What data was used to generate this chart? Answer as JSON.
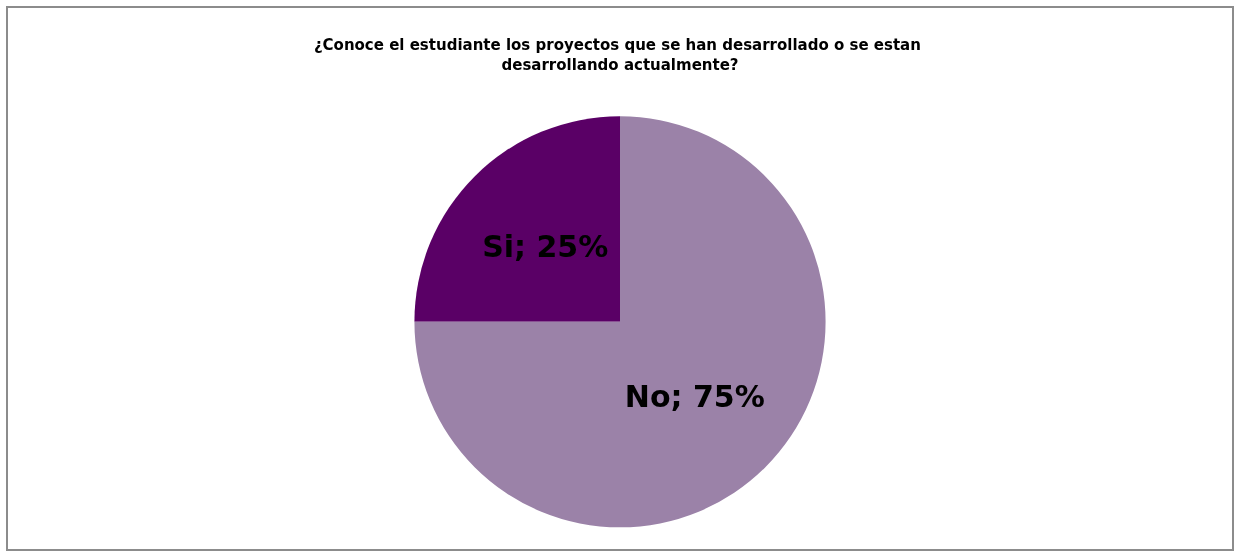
{
  "chart_data": {
    "type": "pie",
    "title": "¿Conoce el estudiante los proyectos que se han desarrollado o se estan desarrollando actualmente?",
    "categories": [
      "Si",
      "No"
    ],
    "values": [
      25,
      75
    ],
    "value_labels": [
      "25%",
      "75%"
    ],
    "colors": [
      "#5a0066",
      "#9b82a8"
    ],
    "legend": false
  }
}
